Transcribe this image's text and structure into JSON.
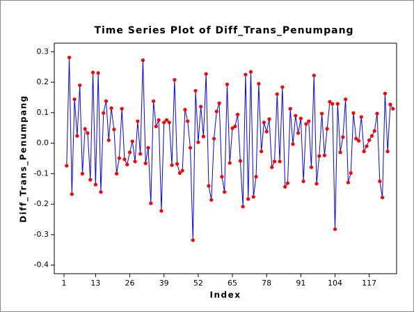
{
  "chart_data": {
    "type": "line",
    "title": "Time Series Plot of Diff_Trans_Penumpang",
    "x_label": "Index",
    "y_label": "Diff_Trans_Penumpang",
    "x": [
      1,
      2,
      3,
      4,
      5,
      6,
      7,
      8,
      9,
      10,
      11,
      12,
      13,
      14,
      15,
      16,
      17,
      18,
      19,
      20,
      21,
      22,
      23,
      24,
      25,
      26,
      27,
      28,
      29,
      30,
      31,
      32,
      33,
      34,
      35,
      36,
      37,
      38,
      39,
      40,
      41,
      42,
      43,
      44,
      45,
      46,
      47,
      48,
      49,
      50,
      51,
      52,
      53,
      54,
      55,
      56,
      57,
      58,
      59,
      60,
      61,
      62,
      63,
      64,
      65,
      66,
      67,
      68,
      69,
      70,
      71,
      72,
      73,
      74,
      75,
      76,
      77,
      78,
      79,
      80,
      81,
      82,
      83,
      84,
      85,
      86,
      87,
      88,
      89,
      90,
      91,
      92,
      93,
      94,
      95,
      96,
      97,
      98,
      99,
      100,
      101,
      102,
      103,
      104,
      105,
      106,
      107,
      108,
      109,
      110,
      111,
      112,
      113,
      114,
      115,
      116,
      117,
      118,
      119,
      120,
      121,
      122,
      123,
      124,
      125,
      126
    ],
    "series": [
      {
        "name": "Diff_Trans_Penumpang",
        "color": "#0000ff",
        "marker_color": "#ff0000",
        "values": [
          null,
          -0.074,
          0.281,
          -0.167,
          0.144,
          0.024,
          0.19,
          -0.1,
          0.047,
          0.033,
          -0.12,
          0.232,
          -0.136,
          0.23,
          -0.16,
          0.099,
          0.138,
          0.01,
          0.115,
          0.045,
          -0.1,
          -0.049,
          0.113,
          -0.053,
          -0.07,
          -0.03,
          0.006,
          -0.06,
          0.072,
          -0.035,
          0.272,
          -0.066,
          -0.015,
          -0.197,
          0.138,
          0.055,
          0.076,
          -0.222,
          0.068,
          0.076,
          0.068,
          -0.072,
          0.208,
          -0.068,
          -0.098,
          -0.09,
          0.11,
          0.072,
          -0.015,
          -0.318,
          0.172,
          0.003,
          0.12,
          0.022,
          0.227,
          -0.14,
          -0.186,
          0.015,
          0.104,
          0.131,
          -0.11,
          -0.16,
          0.193,
          -0.065,
          0.049,
          0.055,
          0.094,
          -0.058,
          -0.208,
          0.225,
          -0.183,
          0.234,
          -0.176,
          -0.11,
          0.195,
          -0.027,
          0.068,
          0.038,
          0.079,
          -0.079,
          -0.06,
          0.161,
          -0.06,
          0.184,
          -0.143,
          -0.131,
          0.113,
          -0.003,
          0.09,
          0.033,
          0.081,
          -0.125,
          0.063,
          0.072,
          -0.079,
          0.222,
          -0.133,
          -0.042,
          0.097,
          -0.04,
          0.047,
          0.136,
          0.129,
          -0.282,
          0.129,
          -0.03,
          0.02,
          0.144,
          -0.129,
          -0.098,
          0.099,
          0.015,
          0.008,
          0.086,
          -0.027,
          -0.01,
          0.01,
          0.024,
          0.04,
          0.097,
          -0.125,
          -0.178,
          0.163,
          -0.027,
          0.127,
          0.113
        ]
      }
    ],
    "xlim": [
      -2.7,
      127.4
    ],
    "xticks": [
      1,
      13,
      26,
      39,
      52,
      65,
      78,
      91,
      104,
      117
    ],
    "ylim": [
      -0.428,
      0.328
    ],
    "yticks": [
      0.3,
      0.2,
      0.1,
      {
        "value": 0,
        "label": "0.0"
      },
      -0.1,
      -0.2,
      -0.3,
      -0.4
    ]
  }
}
